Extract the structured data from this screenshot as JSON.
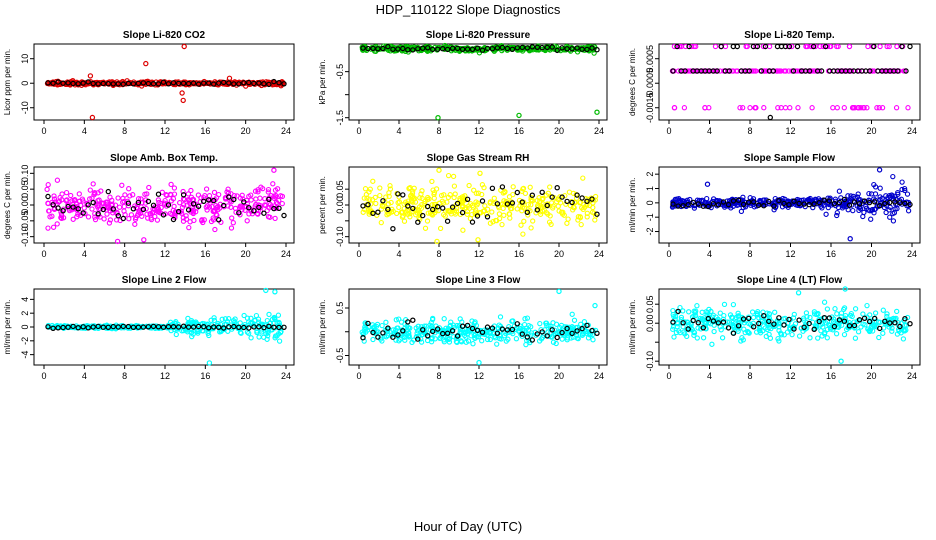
{
  "figure": {
    "title": "HDP_110122  Slope Diagnostics",
    "xlabel": "Hour of Day (UTC)"
  },
  "chart_data": [
    {
      "type": "scatter",
      "title": "Slope Li-820 CO2",
      "ylabel": "Licor ppm per min.",
      "xlim": [
        0,
        24
      ],
      "ylim": [
        -15,
        16
      ],
      "xticks": [
        "0",
        "4",
        "8",
        "12",
        "16",
        "20",
        "24"
      ],
      "yticks": [
        "-10",
        "0",
        "10"
      ],
      "ytick_values": [
        -10,
        0,
        10
      ],
      "color": "#dd0000",
      "band": 0.6,
      "spread": 0.6,
      "outliers": [
        [
          4.6,
          3
        ],
        [
          4.8,
          -14
        ],
        [
          10.1,
          8
        ],
        [
          13.7,
          -4
        ],
        [
          13.8,
          -7
        ],
        [
          13.9,
          15
        ],
        [
          18.4,
          2
        ],
        [
          23.5,
          -1
        ]
      ],
      "black_spread": 0.4
    },
    {
      "type": "scatter",
      "title": "Slope Li-820 Pressure",
      "ylabel": "kPa per min.",
      "xlim": [
        0,
        24
      ],
      "ylim": [
        -1.55,
        0.1
      ],
      "xticks": [
        "0",
        "4",
        "8",
        "12",
        "16",
        "20",
        "24"
      ],
      "yticks": [
        "-1.5",
        "-1.0",
        "-0.5"
      ],
      "ytick_values": [
        -1.5,
        -1.0,
        -0.5
      ],
      "ytick_shown": [
        "-1.5",
        "-0.5"
      ],
      "color": "#00bb00",
      "band": 0.03,
      "spread": 0.05,
      "outliers": [
        [
          7.9,
          -1.5
        ],
        [
          11.3,
          -0.05
        ],
        [
          16.0,
          -1.45
        ],
        [
          23.8,
          -1.38
        ]
      ],
      "black_spread": 0.03
    },
    {
      "type": "scatter",
      "title": "Slope Li-820 Temp.",
      "ylabel": "degrees C per min.",
      "xlim": [
        0,
        24
      ],
      "ylim": [
        -0.002,
        0.0011
      ],
      "xticks": [
        "0",
        "4",
        "8",
        "12",
        "16",
        "20",
        "24"
      ],
      "yticks": [
        "-0.0015",
        "-0.0005",
        "0.0005"
      ],
      "ytick_values": [
        -0.0015,
        -0.0005,
        0.0005
      ],
      "color": "#ff00ff",
      "levels": [
        0.001,
        0.0,
        -0.0015
      ],
      "outliers": [
        [
          10.0,
          -0.0019
        ]
      ],
      "black_spread": 0
    },
    {
      "type": "scatter",
      "title": "Slope Amb. Box Temp.",
      "ylabel": "degrees C per min.",
      "xlim": [
        0,
        24
      ],
      "ylim": [
        -0.12,
        0.12
      ],
      "xticks": [
        "0",
        "4",
        "8",
        "12",
        "16",
        "20",
        "24"
      ],
      "yticks": [
        "-0.10",
        "-0.05",
        "0.00",
        "0.05",
        "0.10"
      ],
      "ytick_values": [
        -0.1,
        -0.05,
        0.0,
        0.05,
        0.1
      ],
      "color": "#ff00ff",
      "band": 0.0,
      "spread": 0.055,
      "outliers": [
        [
          7.3,
          -0.115
        ],
        [
          9.9,
          -0.11
        ],
        [
          22.8,
          0.11
        ]
      ],
      "black_spread": 0.04
    },
    {
      "type": "scatter",
      "title": "Slope Gas Stream RH",
      "ylabel": "percent per min.",
      "xlim": [
        0,
        24
      ],
      "ylim": [
        -0.12,
        0.12
      ],
      "xticks": [
        "0",
        "4",
        "8",
        "12",
        "16",
        "20",
        "24"
      ],
      "yticks": [
        "-0.10",
        "-0.05",
        "0.00",
        "0.05"
      ],
      "ytick_values": [
        -0.1,
        -0.05,
        0.0,
        0.05
      ],
      "ytick_shown": [
        "-0.10",
        "0.00",
        "0.05"
      ],
      "color": "#ffff00",
      "band": 0.0,
      "spread": 0.05,
      "outliers": [
        [
          7.8,
          -0.115
        ],
        [
          8.0,
          0.11
        ],
        [
          11.9,
          -0.11
        ],
        [
          12.1,
          0.1
        ]
      ],
      "black_spread": 0.04
    },
    {
      "type": "scatter",
      "title": "Slope Sample Flow",
      "ylabel": "ml/min per min.",
      "xlim": [
        0,
        24
      ],
      "ylim": [
        -2.8,
        2.5
      ],
      "xticks": [
        "0",
        "4",
        "8",
        "12",
        "16",
        "20",
        "24"
      ],
      "yticks": [
        "-2",
        "-1",
        "0",
        "1",
        "2"
      ],
      "ytick_values": [
        -2,
        -1,
        0,
        1,
        2
      ],
      "color": "#0000cc",
      "band": 0.0,
      "spread": 0.3,
      "late_spread": 1.2,
      "late_from": 15,
      "outliers": [
        [
          3.8,
          1.3
        ],
        [
          17.9,
          -2.5
        ],
        [
          20.8,
          2.3
        ]
      ],
      "black_spread": 0.2
    },
    {
      "type": "scatter",
      "title": "Slope Line 2 Flow",
      "ylabel": "ml/min per min.",
      "xlim": [
        0,
        24
      ],
      "ylim": [
        -5.5,
        5.5
      ],
      "xticks": [
        "0",
        "4",
        "8",
        "12",
        "16",
        "20",
        "24"
      ],
      "yticks": [
        "-4",
        "-2",
        "0",
        "2",
        "4"
      ],
      "ytick_values": [
        -4,
        -2,
        0,
        2,
        4
      ],
      "color": "#00ffff",
      "band": 0.0,
      "spread": 0.2,
      "late_spread": 2.0,
      "late_from": 12.5,
      "outliers": [
        [
          16.4,
          -5.2
        ],
        [
          22.0,
          5.3
        ],
        [
          22.9,
          5.1
        ]
      ],
      "black_spread": 0.1
    },
    {
      "type": "scatter",
      "title": "Slope Line 3 Flow",
      "ylabel": "ml/min per min.",
      "xlim": [
        0,
        24
      ],
      "ylim": [
        -0.7,
        0.9
      ],
      "xticks": [
        "0",
        "4",
        "8",
        "12",
        "16",
        "20",
        "24"
      ],
      "yticks": [
        "-0.5",
        "0.0",
        "0.5"
      ],
      "ytick_values": [
        -0.5,
        0.0,
        0.5
      ],
      "ytick_shown": [
        "-0.5",
        "0.5"
      ],
      "color": "#00ffff",
      "band": 0.0,
      "spread": 0.22,
      "outliers": [
        [
          12.0,
          -0.65
        ],
        [
          20.0,
          0.85
        ],
        [
          23.6,
          0.55
        ]
      ],
      "black_spread": 0.15
    },
    {
      "type": "scatter",
      "title": "Slope Line 4 (LT) Flow",
      "ylabel": "ml/min per min.",
      "xlim": [
        0,
        24
      ],
      "ylim": [
        -0.11,
        0.09
      ],
      "xticks": [
        "0",
        "4",
        "8",
        "12",
        "16",
        "20",
        "24"
      ],
      "yticks": [
        "-0.10",
        "-0.05",
        "0.00",
        "0.05"
      ],
      "ytick_values": [
        -0.1,
        -0.05,
        0.0,
        0.05
      ],
      "ytick_shown": [
        "-0.10",
        "0.00",
        "0.05"
      ],
      "color": "#00ffff",
      "band": 0.0,
      "spread": 0.035,
      "outliers": [
        [
          12.8,
          0.08
        ],
        [
          17.4,
          0.09
        ],
        [
          17.0,
          -0.1
        ]
      ],
      "black_spread": 0.02
    }
  ]
}
